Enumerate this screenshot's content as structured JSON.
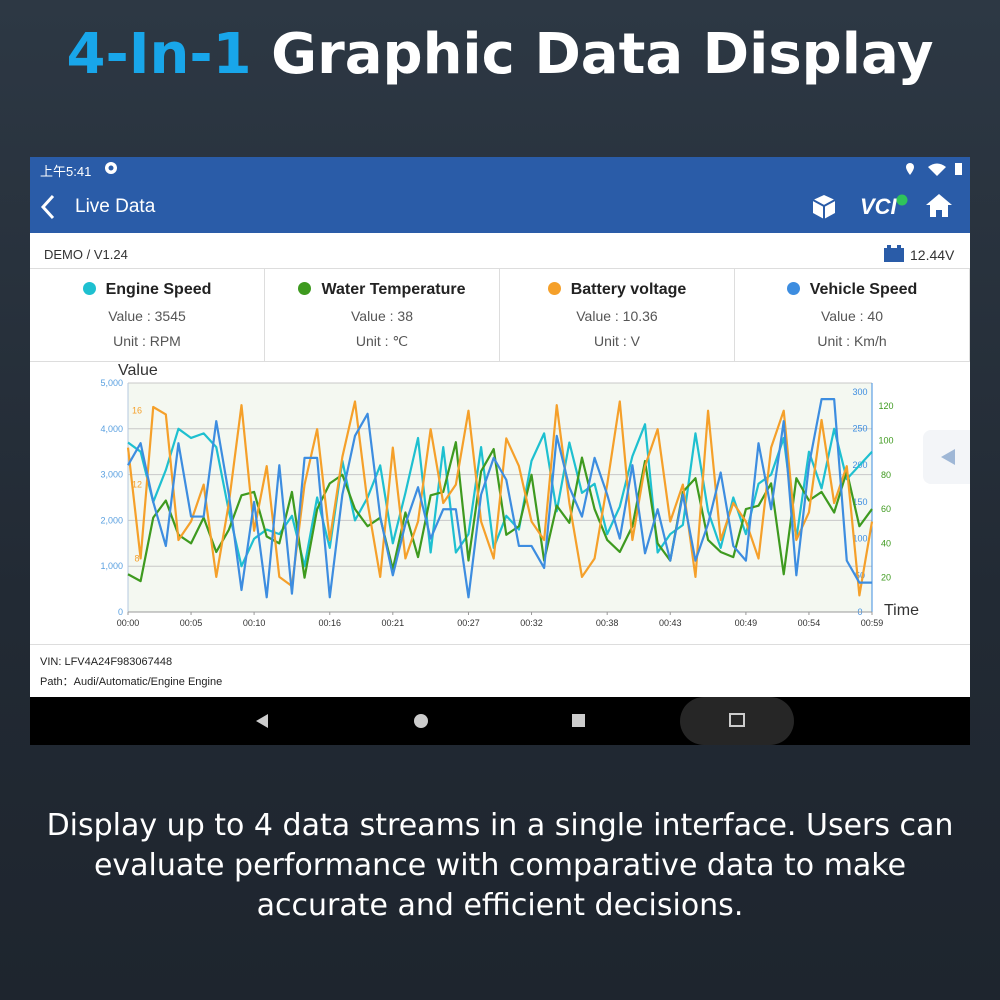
{
  "header": {
    "title_highlight": "4-In-1",
    "title_rest": "Graphic Data Display"
  },
  "status_bar": {
    "time": "上午5:41"
  },
  "app_bar": {
    "title": "Live Data",
    "vci": "VCI"
  },
  "info": {
    "version": "DEMO / V1.24",
    "voltage": "12.44V"
  },
  "cards": [
    {
      "name": "Engine Speed",
      "value": "Value : 3545",
      "unit": "Unit : RPM",
      "color": "#1ec0d0"
    },
    {
      "name": "Water Temperature",
      "value": "Value : 38",
      "unit": "Unit : ℃",
      "color": "#3e9a1f"
    },
    {
      "name": "Battery voltage",
      "value": "Value : 10.36",
      "unit": "Unit : V",
      "color": "#f5a02a"
    },
    {
      "name": "Vehicle Speed",
      "value": "Value : 40",
      "unit": "Unit : Km/h",
      "color": "#3d8de0"
    }
  ],
  "chart_data": {
    "type": "line",
    "y_label": "Value",
    "x_label": "Time",
    "x": [
      0,
      1,
      2,
      3,
      4,
      5,
      6,
      7,
      8,
      9,
      10,
      11,
      12,
      13,
      14,
      15,
      16,
      17,
      18,
      19,
      20,
      21,
      22,
      23,
      24,
      25,
      26,
      27,
      28,
      29,
      30,
      31,
      32,
      33,
      34,
      35,
      36,
      37,
      38,
      39,
      40,
      41,
      42,
      43,
      44,
      45,
      46,
      47,
      48,
      49,
      50,
      51,
      52,
      53,
      54,
      55,
      56,
      57,
      58,
      59
    ],
    "xlim": [
      0,
      59
    ],
    "xticks": [
      {
        "value": 0,
        "label": "00:00"
      },
      {
        "value": 5,
        "label": "00:05"
      },
      {
        "value": 10,
        "label": "00:10"
      },
      {
        "value": 16,
        "label": "00:16"
      },
      {
        "value": 21,
        "label": "00:21"
      },
      {
        "value": 27,
        "label": "00:27"
      },
      {
        "value": 32,
        "label": "00:32"
      },
      {
        "value": 38,
        "label": "00:38"
      },
      {
        "value": 43,
        "label": "00:43"
      },
      {
        "value": 49,
        "label": "00:49"
      },
      {
        "value": 54,
        "label": "00:54"
      },
      {
        "value": 59,
        "label": "00:59"
      }
    ],
    "ylim": [
      0,
      5000
    ],
    "yticks": [
      0,
      {
        "value": 1000,
        "label": "1,000"
      },
      {
        "value": 2000,
        "label": "2,000"
      },
      {
        "value": 3000,
        "label": "3,000"
      },
      {
        "value": 4000,
        "label": "4,000"
      },
      {
        "value": 5000,
        "label": "5,000"
      }
    ],
    "ytick_color": "#5aa0e0",
    "y2lim": [
      5.1,
      17.5
    ],
    "y2ticks": [
      8,
      12,
      16
    ],
    "y2tick_color": "#f5a02a",
    "y3lim": [
      0,
      312
    ],
    "y3ticks": [
      0,
      50,
      100,
      150,
      200,
      250,
      300
    ],
    "y3tick_color": "#3d8de0",
    "y4lim": [
      0,
      133.5
    ],
    "y4ticks": [
      20,
      40,
      60,
      80,
      100,
      120
    ],
    "y4tick_color": "#3e9a1f",
    "grid": true,
    "series": [
      {
        "name": "Engine Speed",
        "color": "#1ec0d0",
        "axis": "y",
        "values": [
          3700,
          3500,
          2400,
          3100,
          4000,
          3800,
          3900,
          3600,
          2200,
          1000,
          1600,
          1800,
          1700,
          2100,
          1000,
          2500,
          1400,
          3300,
          2000,
          2500,
          3200,
          1500,
          2600,
          3800,
          1300,
          3600,
          1300,
          1700,
          3600,
          1400,
          2100,
          1800,
          3300,
          3900,
          2200,
          3700,
          2600,
          2800,
          1700,
          2300,
          3400,
          4100,
          1300,
          1700,
          1900,
          3900,
          2200,
          1400,
          2500,
          1700,
          2800,
          3000,
          3800,
          1600,
          3500,
          2700,
          4000,
          2900,
          3200,
          3500
        ]
      },
      {
        "name": "Water Temperature",
        "color": "#3e9a1f",
        "axis": "y4",
        "values": [
          22,
          18,
          55,
          65,
          45,
          40,
          55,
          35,
          48,
          68,
          70,
          44,
          40,
          70,
          20,
          60,
          75,
          80,
          60,
          50,
          55,
          25,
          58,
          32,
          68,
          70,
          99,
          30,
          82,
          95,
          45,
          50,
          80,
          30,
          62,
          52,
          90,
          60,
          42,
          35,
          50,
          88,
          40,
          30,
          70,
          78,
          42,
          35,
          32,
          60,
          62,
          75,
          22,
          78,
          65,
          70,
          58,
          82,
          50,
          60
        ]
      },
      {
        "name": "Battery voltage",
        "color": "#f5a02a",
        "axis": "y2",
        "values": [
          14,
          8,
          16.2,
          15.8,
          9,
          10,
          12,
          7,
          11,
          16.3,
          9.5,
          13,
          7,
          6.5,
          12,
          15,
          9,
          13.5,
          16.5,
          11,
          7,
          14,
          8,
          10,
          15,
          11,
          12,
          16,
          10,
          8,
          14.5,
          13,
          10,
          9,
          16.3,
          11,
          7,
          8,
          12,
          16.5,
          9,
          13,
          15,
          10,
          12,
          7,
          16,
          9,
          11,
          10,
          8,
          14,
          16,
          9,
          10.5,
          15.5,
          11,
          13,
          6,
          10
        ]
      },
      {
        "name": "Vehicle Speed",
        "color": "#3d8de0",
        "axis": "y3",
        "values": [
          200,
          230,
          150,
          90,
          230,
          130,
          130,
          260,
          160,
          30,
          150,
          20,
          200,
          25,
          210,
          210,
          20,
          160,
          240,
          270,
          130,
          50,
          120,
          170,
          100,
          140,
          140,
          20,
          160,
          210,
          180,
          90,
          90,
          60,
          240,
          170,
          130,
          210,
          160,
          100,
          200,
          80,
          140,
          70,
          160,
          70,
          120,
          190,
          90,
          70,
          230,
          140,
          260,
          50,
          200,
          290,
          290,
          70,
          40,
          40
        ]
      }
    ]
  },
  "footer": {
    "vin": "VIN: LFV4A24F983067448",
    "path": "Path：Audi/Automatic/Engine Engine"
  },
  "caption": "Display up to 4 data streams in a single interface. Users can evaluate performance with comparative data to make accurate and efficient decisions."
}
